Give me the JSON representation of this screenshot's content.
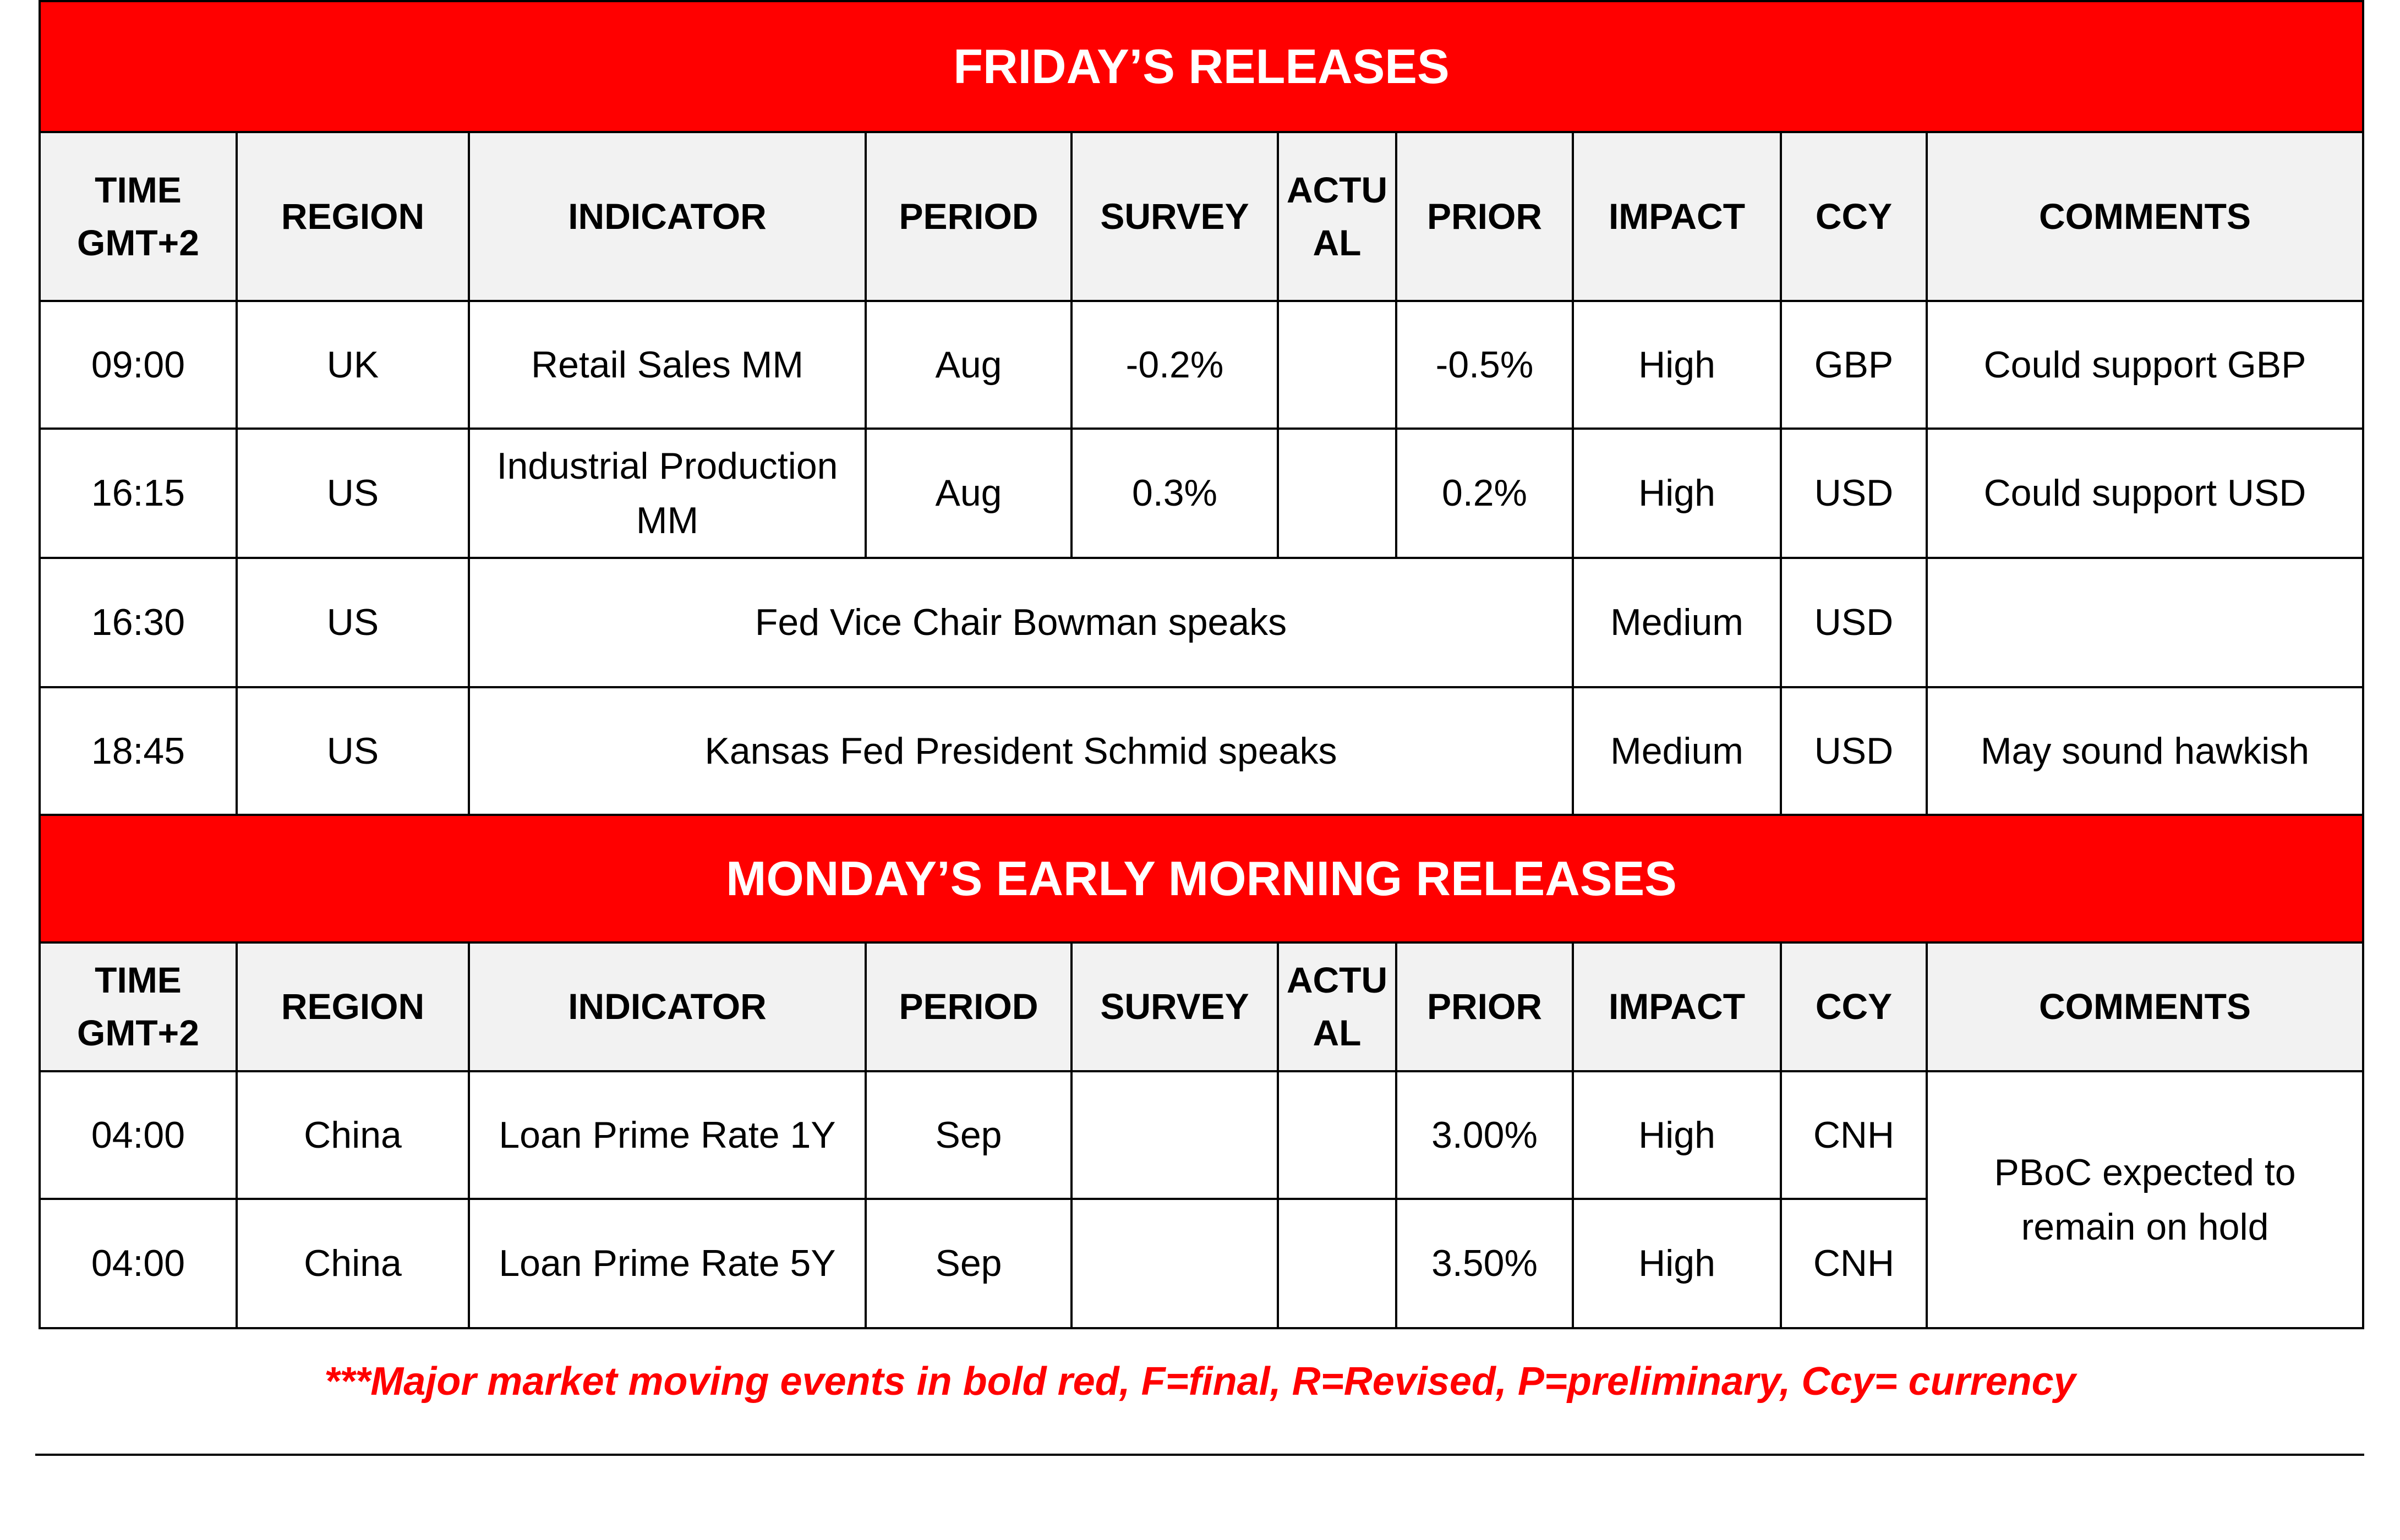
{
  "sections": [
    {
      "title": "FRIDAY’S RELEASES",
      "headers": [
        "TIME GMT+2",
        "REGION",
        "INDICATOR",
        "PERIOD",
        "SURVEY",
        "ACTUAL",
        "PRIOR",
        "IMPACT",
        "CCY",
        "COMMENTS"
      ],
      "rows": [
        {
          "time": "09:00",
          "region": "UK",
          "indicator": "Retail Sales MM",
          "period": "Aug",
          "survey": "-0.2%",
          "prior": "-0.5%",
          "impact": "High",
          "ccy": "GBP",
          "comments": "Could support GBP"
        },
        {
          "time": "16:15",
          "region": "US",
          "indicator": "Industrial Production MM",
          "period": "Aug",
          "survey": "0.3%",
          "prior": "0.2%",
          "impact": "High",
          "ccy": "USD",
          "comments": "Could support USD"
        },
        {
          "time": "16:30",
          "region": "US",
          "event": "Fed Vice Chair Bowman speaks",
          "impact": "Medium",
          "ccy": "USD"
        },
        {
          "time": "18:45",
          "region": "US",
          "event": "Kansas Fed President Schmid speaks",
          "impact": "Medium",
          "ccy": "USD",
          "comments": "May sound hawkish"
        }
      ]
    },
    {
      "title": "MONDAY’S EARLY MORNING RELEASES",
      "headers": [
        "TIME GMT+2",
        "REGION",
        "INDICATOR",
        "PERIOD",
        "SURVEY",
        "ACTUAL",
        "PRIOR",
        "IMPACT",
        "CCY",
        "COMMENTS"
      ],
      "rows": [
        {
          "time": "04:00",
          "region": "China",
          "indicator": "Loan Prime Rate 1Y",
          "period": "Sep",
          "prior": "3.00%",
          "impact": "High",
          "ccy": "CNH"
        },
        {
          "time": "04:00",
          "region": "China",
          "indicator": "Loan Prime Rate 5Y",
          "period": "Sep",
          "prior": "3.50%",
          "impact": "High",
          "ccy": "CNH"
        }
      ],
      "shared_comments": "PBoC expected to remain on hold"
    }
  ],
  "footnote": "***Major market moving events in bold red, F=final, R=Revised, P=preliminary, Ccy= currency"
}
